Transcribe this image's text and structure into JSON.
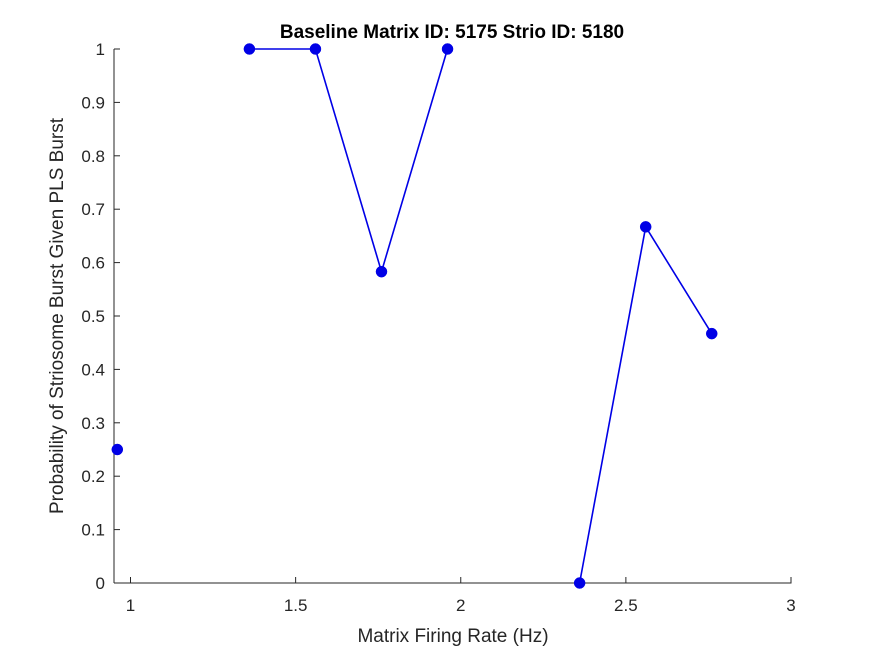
{
  "chart_data": {
    "type": "line",
    "title": "Baseline Matrix ID: 5175 Strio ID: 5180",
    "xlabel": "Matrix Firing Rate (Hz)",
    "ylabel": "Probability of Striosome Burst Given PLS Burst",
    "xlim": [
      0.95,
      3
    ],
    "ylim": [
      0,
      1
    ],
    "xticks": [
      1,
      1.5,
      2,
      2.5,
      3
    ],
    "xtick_labels": [
      "1",
      "1.5",
      "2",
      "2.5",
      "3"
    ],
    "yticks": [
      0,
      0.1,
      0.2,
      0.3,
      0.4,
      0.5,
      0.6,
      0.7,
      0.8,
      0.9,
      1
    ],
    "ytick_labels": [
      "0",
      "0.1",
      "0.2",
      "0.3",
      "0.4",
      "0.5",
      "0.6",
      "0.7",
      "0.8",
      "0.9",
      "1"
    ],
    "grid": false,
    "series": [
      {
        "color": "#0000e6",
        "marker": "circle",
        "segments": [
          [
            {
              "x": 0.96,
              "y": 0.25
            }
          ],
          [
            {
              "x": 1.36,
              "y": 1.0
            },
            {
              "x": 1.56,
              "y": 1.0
            },
            {
              "x": 1.76,
              "y": 0.583
            },
            {
              "x": 1.96,
              "y": 1.0
            }
          ],
          [
            {
              "x": 2.36,
              "y": 0.0
            },
            {
              "x": 2.56,
              "y": 0.667
            },
            {
              "x": 2.76,
              "y": 0.467
            }
          ]
        ]
      }
    ]
  }
}
